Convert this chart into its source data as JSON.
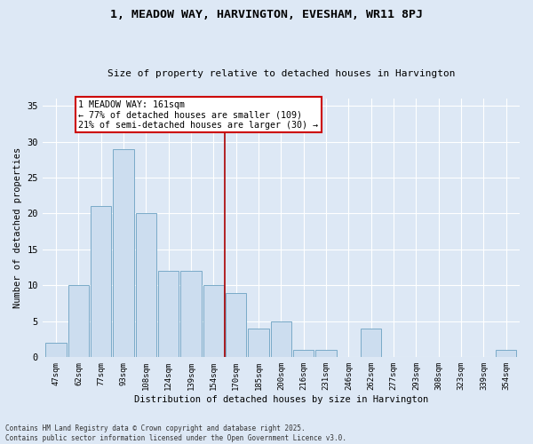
{
  "title": "1, MEADOW WAY, HARVINGTON, EVESHAM, WR11 8PJ",
  "subtitle": "Size of property relative to detached houses in Harvington",
  "xlabel": "Distribution of detached houses by size in Harvington",
  "ylabel": "Number of detached properties",
  "categories": [
    "47sqm",
    "62sqm",
    "77sqm",
    "93sqm",
    "108sqm",
    "124sqm",
    "139sqm",
    "154sqm",
    "170sqm",
    "185sqm",
    "200sqm",
    "216sqm",
    "231sqm",
    "246sqm",
    "262sqm",
    "277sqm",
    "293sqm",
    "308sqm",
    "323sqm",
    "339sqm",
    "354sqm"
  ],
  "values": [
    2,
    10,
    21,
    29,
    20,
    12,
    12,
    10,
    9,
    4,
    5,
    1,
    1,
    0,
    4,
    0,
    0,
    0,
    0,
    0,
    1
  ],
  "bar_color": "#ccddef",
  "bar_edge_color": "#7aaac8",
  "background_color": "#dde8f5",
  "grid_color": "#ffffff",
  "vline_color": "#aa0000",
  "annotation_text": "1 MEADOW WAY: 161sqm\n← 77% of detached houses are smaller (109)\n21% of semi-detached houses are larger (30) →",
  "annotation_box_color": "#ffffff",
  "annotation_box_edge_color": "#cc0000",
  "ylim": [
    0,
    36
  ],
  "yticks": [
    0,
    5,
    10,
    15,
    20,
    25,
    30,
    35
  ],
  "footer": "Contains HM Land Registry data © Crown copyright and database right 2025.\nContains public sector information licensed under the Open Government Licence v3.0.",
  "figsize": [
    6.0,
    5.0
  ],
  "dpi": 100
}
